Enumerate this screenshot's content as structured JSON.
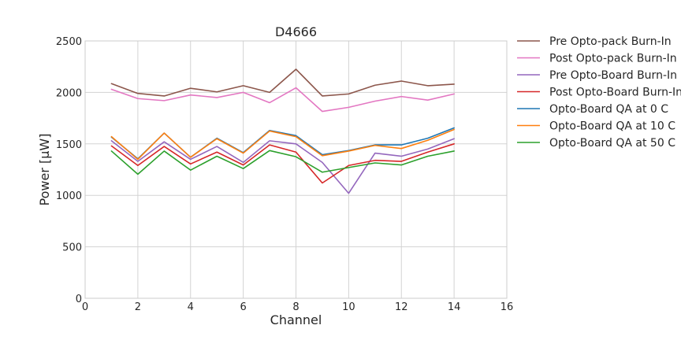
{
  "chart_data": {
    "type": "line",
    "title": "D4666",
    "xlabel": "Channel",
    "ylabel": "Power [μW]",
    "xlim": [
      0,
      16
    ],
    "ylim": [
      0,
      2500
    ],
    "xticks": [
      0,
      2,
      4,
      6,
      8,
      10,
      12,
      14,
      16
    ],
    "yticks": [
      0,
      500,
      1000,
      1500,
      2000,
      2500
    ],
    "grid": true,
    "legend_position": "outside-right",
    "x": [
      1,
      2,
      3,
      4,
      5,
      6,
      7,
      8,
      9,
      10,
      11,
      12,
      13,
      14
    ],
    "series": [
      {
        "name": "Pre Opto-pack Burn-In",
        "color": "#8c564b",
        "values": [
          2085,
          1990,
          1965,
          2040,
          2005,
          2065,
          2000,
          2225,
          1965,
          1985,
          2070,
          2110,
          2065,
          2080
        ]
      },
      {
        "name": "Post Opto-pack Burn-In",
        "color": "#e377c2",
        "values": [
          2030,
          1940,
          1920,
          1975,
          1950,
          2000,
          1900,
          2045,
          1815,
          1855,
          1915,
          1960,
          1925,
          1985
        ]
      },
      {
        "name": "Pre Opto-Board Burn-In",
        "color": "#9467bd",
        "values": [
          1530,
          1330,
          1520,
          1350,
          1475,
          1320,
          1530,
          1500,
          1320,
          1020,
          1410,
          1380,
          1450,
          1550
        ]
      },
      {
        "name": "Post Opto-Board Burn-In",
        "color": "#d62728",
        "values": [
          1480,
          1290,
          1475,
          1305,
          1420,
          1295,
          1490,
          1420,
          1120,
          1290,
          1340,
          1330,
          1420,
          1500
        ]
      },
      {
        "name": "Opto-Board QA at 0 C",
        "color": "#1f77b4",
        "values": [
          1565,
          1355,
          1605,
          1370,
          1555,
          1415,
          1630,
          1580,
          1395,
          1435,
          1490,
          1490,
          1555,
          1655
        ]
      },
      {
        "name": "Opto-Board QA at 10 C",
        "color": "#ff7f0e",
        "values": [
          1570,
          1350,
          1605,
          1370,
          1550,
          1410,
          1625,
          1570,
          1385,
          1430,
          1485,
          1455,
          1535,
          1640
        ]
      },
      {
        "name": "Opto-Board QA at 50 C",
        "color": "#2ca02c",
        "values": [
          1430,
          1205,
          1430,
          1245,
          1380,
          1260,
          1435,
          1375,
          1225,
          1270,
          1315,
          1295,
          1380,
          1430
        ]
      }
    ]
  }
}
